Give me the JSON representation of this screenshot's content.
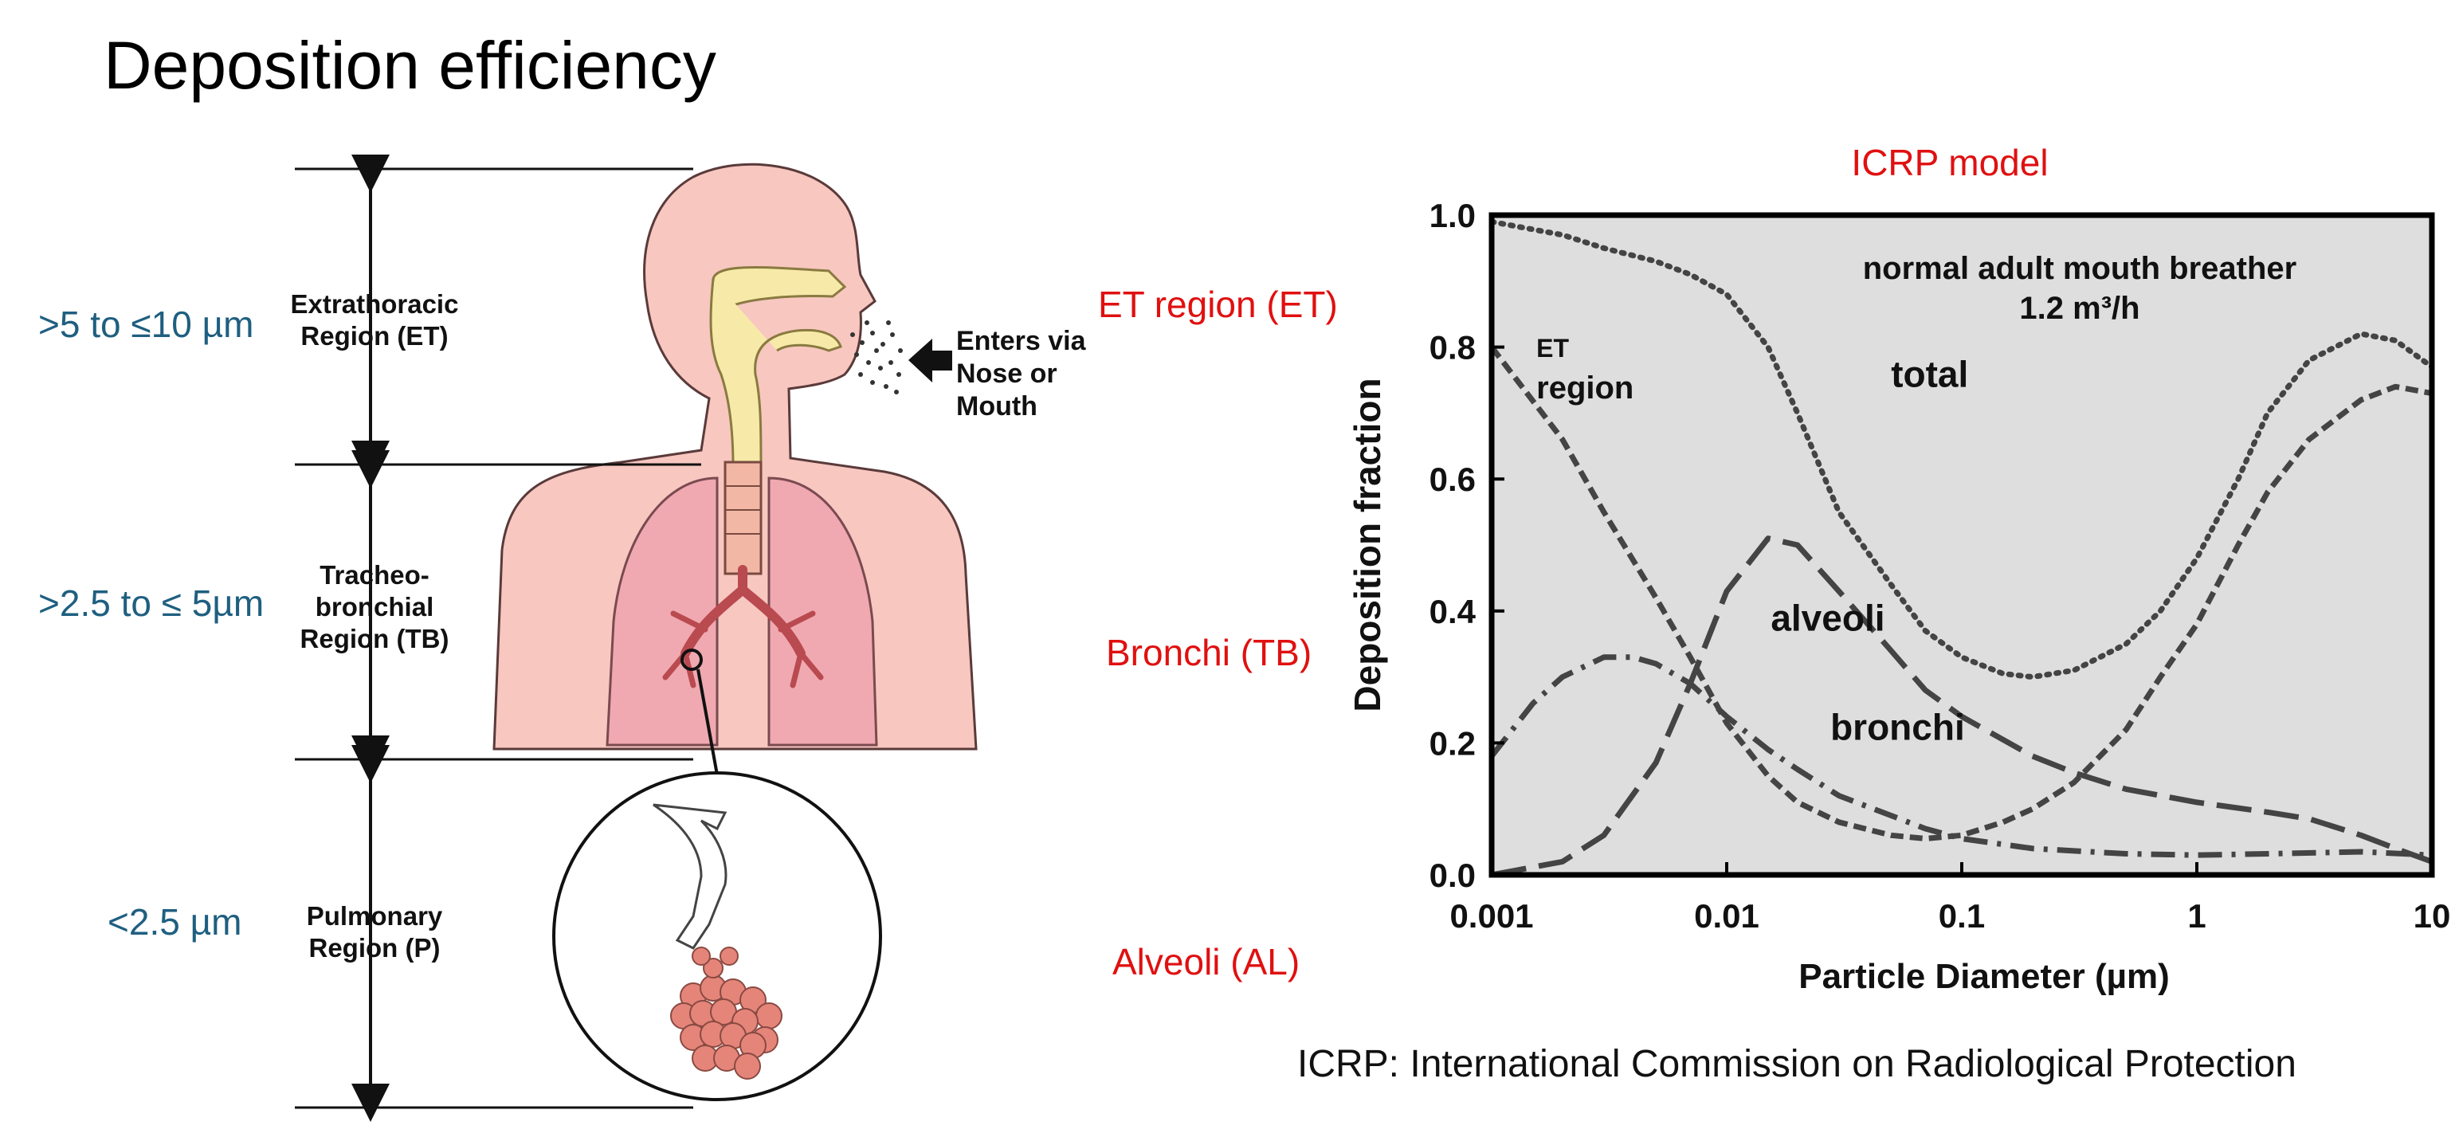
{
  "slide": {
    "title": "Deposition efficiency",
    "footnote": "ICRP: International Commission on Radiological Protection"
  },
  "diagram": {
    "size_labels": [
      ">5 to ≤10 µm",
      ">2.5 to ≤ 5µm",
      "<2.5 µm"
    ],
    "region_labels": [
      [
        "Extrathoracic",
        "Region (ET)"
      ],
      [
        "Tracheo-",
        "bronchial",
        "Region (TB)"
      ],
      [
        "Pulmonary",
        "Region (P)"
      ]
    ],
    "enters_label": [
      "Enters via",
      "Nose or",
      "Mouth"
    ],
    "mapping_labels": [
      "ET region (ET)",
      "Bronchi (TB)",
      "Alveoli (AL)"
    ]
  },
  "chart_data": {
    "type": "line",
    "title": "ICRP model",
    "annotation": [
      "normal adult mouth breather",
      "1.2 m³/h"
    ],
    "xlabel": "Particle  Diameter (µm)",
    "ylabel": "Deposition  fraction",
    "x_scale": "log",
    "xlim": [
      0.001,
      10
    ],
    "ylim": [
      0,
      1.0
    ],
    "x_ticks": [
      0.001,
      0.01,
      0.1,
      1,
      10
    ],
    "x_tick_labels": [
      "0.001",
      "0.01",
      "0.1",
      "1",
      "10"
    ],
    "y_ticks": [
      0.0,
      0.2,
      0.4,
      0.6,
      0.8,
      1.0
    ],
    "y_tick_labels": [
      "0.0",
      "0.2",
      "0.4",
      "0.6",
      "0.8",
      "1.0"
    ],
    "grid": false,
    "background": "#dedede",
    "series": [
      {
        "name": "total",
        "label_lines": [
          "total"
        ],
        "dash": "dotted",
        "x": [
          0.001,
          0.002,
          0.003,
          0.005,
          0.007,
          0.01,
          0.015,
          0.02,
          0.03,
          0.05,
          0.07,
          0.1,
          0.15,
          0.2,
          0.3,
          0.5,
          0.7,
          1,
          1.5,
          2,
          3,
          5,
          7,
          10
        ],
        "y": [
          0.99,
          0.97,
          0.95,
          0.93,
          0.91,
          0.88,
          0.8,
          0.7,
          0.55,
          0.44,
          0.37,
          0.33,
          0.305,
          0.3,
          0.31,
          0.35,
          0.4,
          0.48,
          0.6,
          0.7,
          0.78,
          0.82,
          0.81,
          0.77
        ]
      },
      {
        "name": "ET region",
        "label_lines": [
          "ET",
          "region"
        ],
        "dash": "short-dash",
        "x": [
          0.001,
          0.002,
          0.003,
          0.005,
          0.007,
          0.01,
          0.015,
          0.02,
          0.03,
          0.05,
          0.07,
          0.1,
          0.15,
          0.2,
          0.3,
          0.5,
          0.7,
          1,
          1.5,
          2,
          3,
          5,
          7,
          10
        ],
        "y": [
          0.8,
          0.66,
          0.55,
          0.42,
          0.33,
          0.23,
          0.15,
          0.11,
          0.08,
          0.06,
          0.055,
          0.06,
          0.08,
          0.1,
          0.14,
          0.22,
          0.3,
          0.38,
          0.5,
          0.58,
          0.66,
          0.72,
          0.74,
          0.73
        ]
      },
      {
        "name": "alveoli",
        "label_lines": [
          "alveoli"
        ],
        "dash": "long-dash",
        "x": [
          0.001,
          0.002,
          0.003,
          0.005,
          0.007,
          0.01,
          0.015,
          0.02,
          0.03,
          0.05,
          0.07,
          0.1,
          0.2,
          0.3,
          0.5,
          1,
          2,
          3,
          5,
          7,
          10
        ],
        "y": [
          0.0,
          0.02,
          0.06,
          0.17,
          0.29,
          0.43,
          0.51,
          0.5,
          0.43,
          0.34,
          0.28,
          0.24,
          0.18,
          0.155,
          0.13,
          0.11,
          0.095,
          0.085,
          0.06,
          0.04,
          0.02
        ]
      },
      {
        "name": "bronchi",
        "label_lines": [
          "bronchi"
        ],
        "dash": "dash-dot",
        "x": [
          0.001,
          0.0015,
          0.002,
          0.003,
          0.004,
          0.005,
          0.007,
          0.01,
          0.015,
          0.02,
          0.03,
          0.05,
          0.07,
          0.1,
          0.2,
          0.5,
          1,
          2,
          5,
          10
        ],
        "y": [
          0.18,
          0.26,
          0.3,
          0.33,
          0.33,
          0.32,
          0.29,
          0.24,
          0.19,
          0.16,
          0.12,
          0.09,
          0.07,
          0.055,
          0.04,
          0.032,
          0.03,
          0.032,
          0.035,
          0.03
        ]
      }
    ]
  }
}
